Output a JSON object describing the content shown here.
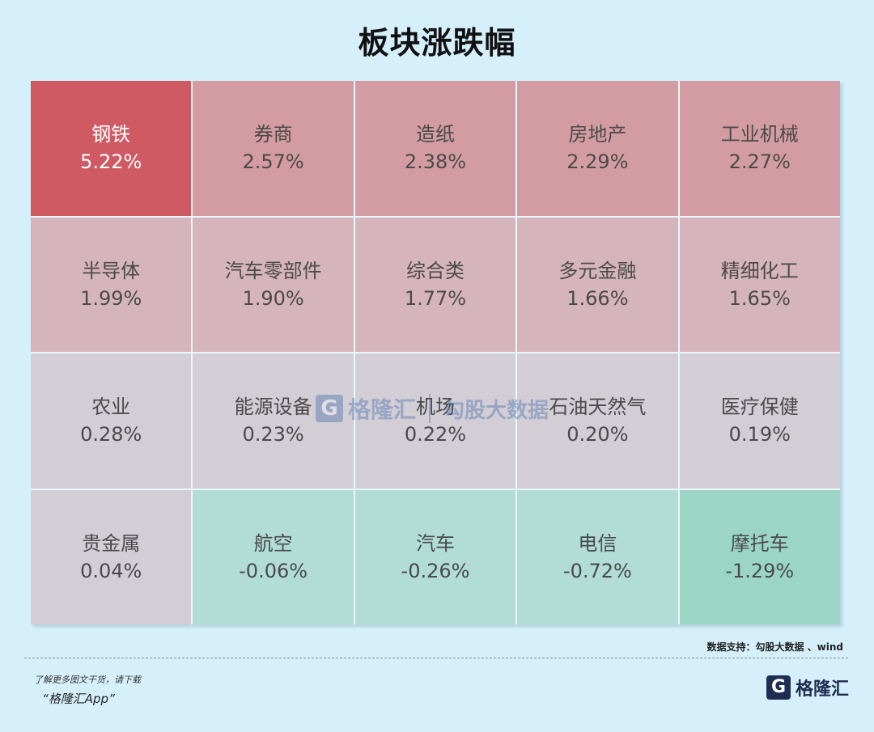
{
  "page": {
    "title": "板块涨跌幅",
    "source": "数据支持：勾股大数据 、wind",
    "footer_hint": "了解更多图文干货，请下载",
    "footer_app": "“格隆汇App”",
    "brand_name": "格隆汇",
    "brand_logo": "G",
    "watermark_brand": "格隆汇",
    "watermark_text": "勾股大数据"
  },
  "chart_data": {
    "type": "heatmap",
    "title": "板块涨跌幅",
    "unit": "%",
    "columns": 5,
    "categories": [
      "钢铁",
      "券商",
      "造纸",
      "房地产",
      "工业机械",
      "半导体",
      "汽车零部件",
      "综合类",
      "多元金融",
      "精细化工",
      "农业",
      "能源设备",
      "机场",
      "石油天然气",
      "医疗保健",
      "贵金属",
      "航空",
      "汽车",
      "电信",
      "摩托车"
    ],
    "labels": [
      "5.22%",
      "2.57%",
      "2.38%",
      "2.29%",
      "2.27%",
      "1.99%",
      "1.90%",
      "1.77%",
      "1.66%",
      "1.65%",
      "0.28%",
      "0.23%",
      "0.22%",
      "0.20%",
      "0.19%",
      "0.04%",
      "-0.06%",
      "-0.26%",
      "-0.72%",
      "-1.29%"
    ],
    "values": [
      5.22,
      2.57,
      2.38,
      2.29,
      2.27,
      1.99,
      1.9,
      1.77,
      1.66,
      1.65,
      0.28,
      0.23,
      0.22,
      0.2,
      0.19,
      0.04,
      -0.06,
      -0.26,
      -0.72,
      -1.29
    ],
    "colors": {
      "strong_up": "#cf5a63",
      "up": "#d39ca2",
      "mild_up": "#d6b4bb",
      "flat": "#d3cdd6",
      "down": "#b1ddd6",
      "strong_down": "#9bd6c4"
    }
  }
}
